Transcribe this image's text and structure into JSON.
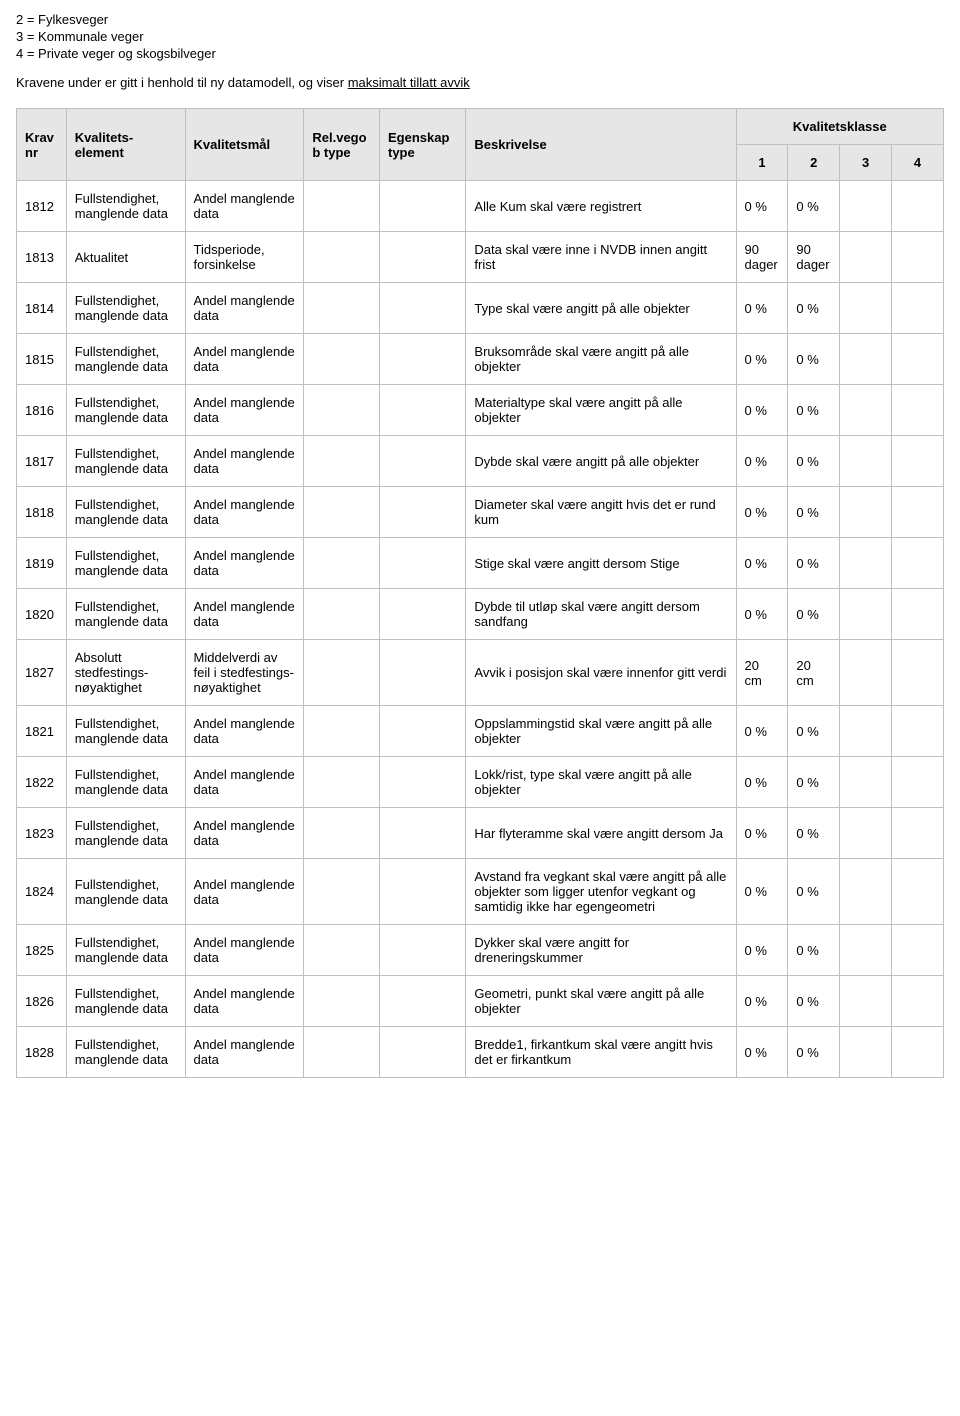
{
  "legend": [
    "2 = Fylkesveger",
    "3 = Kommunale veger",
    "4 = Private veger og skogsbilveger"
  ],
  "intro_prefix": "Kravene under er gitt i henhold til ny datamodell, og viser ",
  "intro_underlined": "maksimalt tillatt avvik",
  "headers": {
    "krav_nr": "Krav nr",
    "kvalitetselement": "Kvalitets-element",
    "kvalitetsmal": "Kvalitetsmål",
    "relvegob": "Rel.vegob type",
    "egenskap": "Egenskap type",
    "beskrivelse": "Beskrivelse",
    "kvalitetsklasse": "Kvalitetsklasse",
    "k1": "1",
    "k2": "2",
    "k3": "3",
    "k4": "4"
  },
  "defaults": {
    "element": "Fullstendighet, manglende data",
    "mal": "Andel manglende data"
  },
  "rows": [
    {
      "nr": "1812",
      "beskrivelse": "Alle Kum skal være registrert",
      "k1": "0 %",
      "k2": "0 %"
    },
    {
      "nr": "1813",
      "element": "Aktualitet",
      "mal": "Tidsperiode, forsinkelse",
      "beskrivelse": "Data skal være inne i NVDB innen angitt frist",
      "k1": "90 dager",
      "k2": "90 dager"
    },
    {
      "nr": "1814",
      "beskrivelse": "Type skal være angitt på alle objekter",
      "k1": "0 %",
      "k2": "0 %"
    },
    {
      "nr": "1815",
      "beskrivelse": "Bruksområde skal være angitt på alle objekter",
      "k1": "0 %",
      "k2": "0 %"
    },
    {
      "nr": "1816",
      "beskrivelse": "Materialtype skal være angitt på alle objekter",
      "k1": "0 %",
      "k2": "0 %"
    },
    {
      "nr": "1817",
      "beskrivelse": "Dybde skal være angitt på alle objekter",
      "k1": "0 %",
      "k2": "0 %"
    },
    {
      "nr": "1818",
      "beskrivelse": "Diameter skal være angitt hvis det er rund kum",
      "k1": "0 %",
      "k2": "0 %"
    },
    {
      "nr": "1819",
      "beskrivelse": "Stige skal være angitt dersom Stige",
      "k1": "0 %",
      "k2": "0 %"
    },
    {
      "nr": "1820",
      "beskrivelse": "Dybde til utløp skal være angitt dersom sandfang",
      "k1": "0 %",
      "k2": "0 %"
    },
    {
      "nr": "1827",
      "element": "Absolutt stedfestings-nøyaktighet",
      "mal": "Middelverdi av feil i stedfestings-nøyaktighet",
      "beskrivelse": "Avvik i posisjon skal være innenfor gitt verdi",
      "k1": "20 cm",
      "k2": "20 cm"
    },
    {
      "nr": "1821",
      "beskrivelse": "Oppslammingstid skal være angitt på alle objekter",
      "k1": "0 %",
      "k2": "0 %"
    },
    {
      "nr": "1822",
      "beskrivelse": "Lokk/rist, type skal være angitt på alle objekter",
      "k1": "0 %",
      "k2": "0 %"
    },
    {
      "nr": "1823",
      "beskrivelse": "Har flyteramme skal være angitt dersom Ja",
      "k1": "0 %",
      "k2": "0 %"
    },
    {
      "nr": "1824",
      "beskrivelse": "Avstand fra vegkant skal være angitt på alle objekter som ligger utenfor vegkant og samtidig ikke har egengeometri",
      "k1": "0 %",
      "k2": "0 %"
    },
    {
      "nr": "1825",
      "beskrivelse": "Dykker skal være angitt for dreneringskummer",
      "k1": "0 %",
      "k2": "0 %"
    },
    {
      "nr": "1826",
      "beskrivelse": "Geometri, punkt skal være angitt på alle objekter",
      "k1": "0 %",
      "k2": "0 %"
    },
    {
      "nr": "1828",
      "beskrivelse": "Bredde1, firkantkum skal være angitt hvis det er firkantkum",
      "k1": "0 %",
      "k2": "0 %"
    }
  ]
}
